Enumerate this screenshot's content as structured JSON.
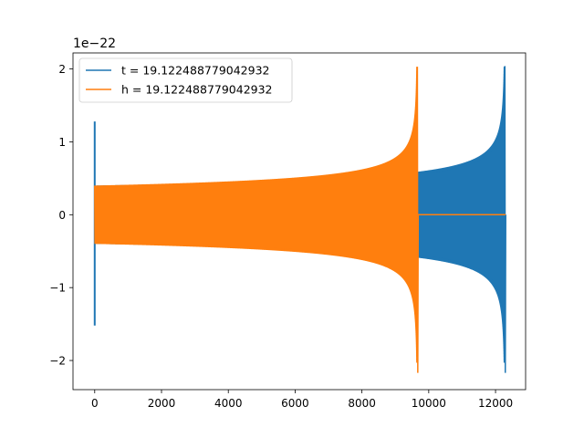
{
  "chart_data": {
    "type": "line",
    "title": "",
    "xlabel": "",
    "ylabel": "",
    "y_offset_label": "1e−22",
    "xlim": [
      -650,
      12900
    ],
    "ylim": [
      -2.4,
      2.22
    ],
    "xticks": [
      0,
      2000,
      4000,
      6000,
      8000,
      10000,
      12000
    ],
    "xtick_labels": [
      "0",
      "2000",
      "4000",
      "6000",
      "8000",
      "10000",
      "12000"
    ],
    "yticks": [
      -2,
      -1,
      0,
      1,
      2
    ],
    "ytick_labels": [
      "−2",
      "−1",
      "0",
      "1",
      "2"
    ],
    "grid": false,
    "legend_position": "upper-left",
    "series": [
      {
        "name": "t = 19.122488779042932",
        "color": "#1f77b4",
        "x_start": 0,
        "x_end": 12300,
        "initial_spike": {
          "x": 0,
          "min": -1.52,
          "max": 1.28
        },
        "amplitude_start": 0.4,
        "peak": {
          "x": 12280,
          "min": -2.17,
          "max": 2.03
        }
      },
      {
        "name": "h = 19.122488779042932",
        "color": "#ff7f0e",
        "x_start": 0,
        "x_end": 12300,
        "amplitude_start": 0.4,
        "peak": {
          "x": 9660,
          "min": -2.17,
          "max": 2.03
        },
        "flat_after": {
          "x_start": 9700,
          "x_end": 12300,
          "value": 0
        }
      }
    ]
  }
}
